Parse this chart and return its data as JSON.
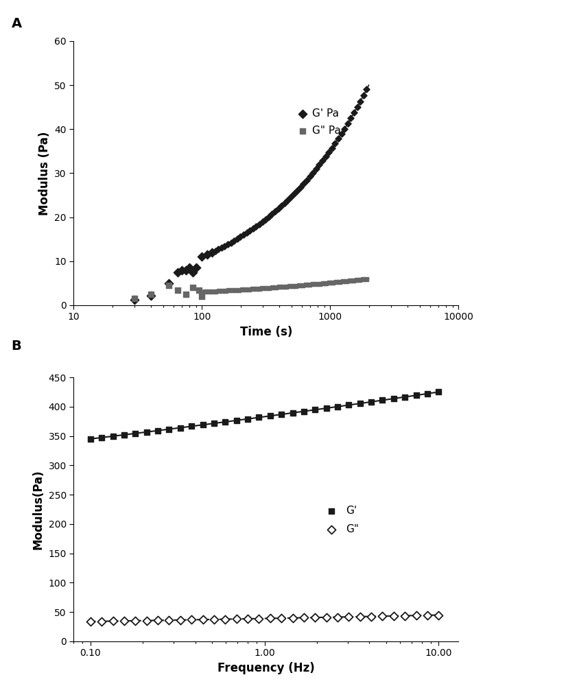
{
  "panel_A": {
    "label": "A",
    "xlabel": "Time (s)",
    "ylabel": "Modulus (Pa)",
    "ylim": [
      0,
      60
    ],
    "yticks": [
      0,
      10,
      20,
      30,
      40,
      50,
      60
    ],
    "xticks_log": [
      10,
      100,
      1000,
      10000
    ],
    "xtick_labels": [
      "10",
      "100",
      "1000",
      "10000"
    ],
    "G_prime_scatter_x": [
      30,
      40,
      55,
      65,
      70,
      75,
      80,
      85,
      90,
      100,
      110,
      120
    ],
    "G_prime_scatter_y": [
      1.2,
      2.2,
      5.0,
      7.5,
      8.0,
      8.0,
      8.5,
      7.5,
      8.5,
      11.0,
      11.5,
      12.0
    ],
    "G_prime_curve_y_at_start": 12.0,
    "G_prime_curve_y_at_end": 50.0,
    "G_prime_curve_x_start": 120,
    "G_prime_curve_x_end": 2000,
    "G_double_prime_scatter_x": [
      30,
      40,
      55,
      65,
      75,
      85,
      95,
      100
    ],
    "G_double_prime_scatter_y": [
      1.5,
      2.5,
      4.5,
      3.5,
      2.5,
      4.0,
      3.5,
      2.0
    ],
    "G_double_prime_curve_x_start": 100,
    "G_double_prime_curve_x_end": 2000,
    "G_double_prime_curve_y_at_start": 3.0,
    "G_double_prime_curve_y_at_end": 6.0,
    "legend_G_prime": "G' Pa",
    "legend_G_double_prime": "G\" Pa",
    "color_G_prime": "#1a1a1a",
    "color_G_double_prime": "#666666"
  },
  "panel_B": {
    "label": "B",
    "xlabel": "Frequency (Hz)",
    "ylabel": "Modulus(Pa)",
    "ylim": [
      0,
      450
    ],
    "yticks": [
      0,
      50,
      100,
      150,
      200,
      250,
      300,
      350,
      400,
      450
    ],
    "xticks_log": [
      0.1,
      1.0,
      10.0
    ],
    "xtick_labels": [
      "0.10",
      "1.00",
      "10.00"
    ],
    "G_prime_x_start": 0.1,
    "G_prime_x_end": 10.0,
    "G_prime_y_start": 345,
    "G_prime_y_end": 425,
    "G_double_prime_x_start": 0.1,
    "G_double_prime_x_end": 10.0,
    "G_double_prime_y_start": 34,
    "G_double_prime_y_end": 45,
    "legend_G_prime": "G'",
    "legend_G_double_prime": "G\"",
    "color_G_prime": "#1a1a1a",
    "color_G_double_prime": "#1a1a1a",
    "n_points": 32
  },
  "background_color": "#ffffff",
  "font_color": "#1a1a1a"
}
